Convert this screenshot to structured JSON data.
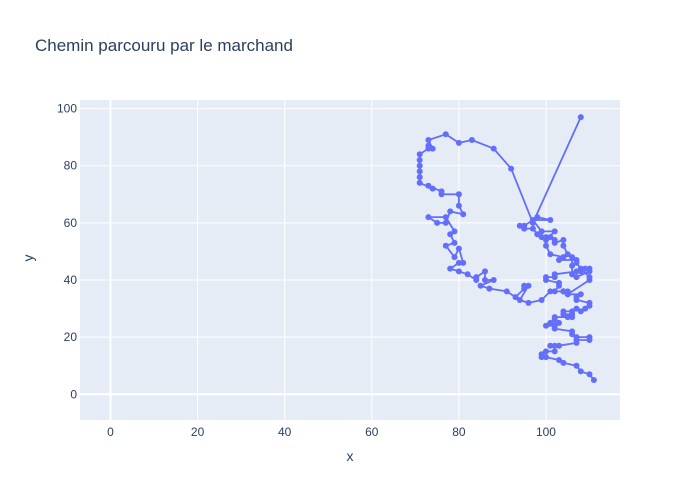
{
  "chart_data": {
    "type": "line",
    "title": "Chemin parcouru par le marchand",
    "xlabel": "x",
    "ylabel": "y",
    "xlim": [
      -7,
      117
    ],
    "ylim": [
      -9,
      103
    ],
    "xticks": [
      0,
      20,
      40,
      60,
      80,
      100
    ],
    "yticks": [
      0,
      20,
      40,
      60,
      80,
      100
    ],
    "grid": true,
    "mode": "lines+markers",
    "line_color": "#636efa",
    "plot_background": "#e5ecf6",
    "series": [
      {
        "x": [
          108,
          97,
          92,
          88,
          83,
          80,
          77,
          73,
          74,
          73,
          73,
          71,
          71,
          71,
          71,
          71,
          71,
          74,
          73,
          76,
          76,
          80,
          80,
          81,
          78,
          77,
          75,
          73,
          77,
          79,
          78,
          79,
          77,
          79,
          80,
          81,
          80,
          78,
          80,
          82,
          84,
          84,
          86,
          86,
          88,
          85,
          87,
          91,
          93,
          95,
          95,
          96,
          94,
          96,
          99,
          101,
          104,
          105,
          104,
          105,
          110,
          110,
          108,
          107,
          107,
          103,
          104,
          101,
          100,
          100,
          102,
          99,
          97,
          101,
          98,
          95,
          94,
          95,
          97,
          98,
          99,
          100,
          101,
          102,
          102,
          104,
          104,
          105,
          106,
          106,
          106,
          107,
          110,
          110,
          109,
          108,
          107,
          102,
          102,
          100,
          100,
          103,
          103,
          102,
          104,
          105,
          108,
          107,
          107,
          110,
          110,
          109,
          108,
          107,
          106,
          104,
          104,
          106,
          106,
          105,
          102,
          102,
          101,
          100,
          102,
          103,
          102,
          102,
          106,
          106,
          107,
          110,
          110,
          107,
          107,
          103,
          101,
          102,
          102,
          100,
          99,
          99,
          100,
          103,
          104,
          107,
          108,
          110,
          111
        ],
        "y": [
          97,
          60,
          79,
          86,
          89,
          88,
          91,
          89,
          86,
          87,
          86,
          84,
          82,
          80,
          78,
          76,
          74,
          72,
          73,
          71,
          70,
          70,
          66,
          63,
          64,
          60,
          60,
          62,
          62,
          57,
          56,
          53,
          52,
          48,
          51,
          46,
          46,
          44,
          43,
          42,
          40,
          41,
          43,
          40,
          40,
          38,
          37,
          36,
          34,
          37,
          38,
          38,
          33,
          32,
          33,
          36,
          36,
          36,
          36,
          35,
          40,
          41,
          44,
          46,
          47,
          47,
          48,
          49,
          52,
          54,
          57,
          57,
          61,
          61,
          62,
          59,
          59,
          58,
          58,
          56,
          55,
          55,
          55,
          54,
          53,
          54,
          52,
          49,
          48,
          45,
          42,
          41,
          43,
          44,
          44,
          43,
          43,
          42,
          41,
          41,
          40,
          39,
          38,
          36,
          36,
          35,
          35,
          34,
          33,
          32,
          31,
          30,
          29,
          30,
          29,
          29,
          28,
          28,
          27,
          27,
          27,
          26,
          25,
          24,
          24,
          25,
          24,
          23,
          22,
          21,
          20,
          20,
          19,
          19,
          18,
          17,
          17,
          17,
          15,
          15,
          14,
          13,
          13,
          12,
          11,
          10,
          8,
          7,
          5
        ]
      }
    ]
  }
}
